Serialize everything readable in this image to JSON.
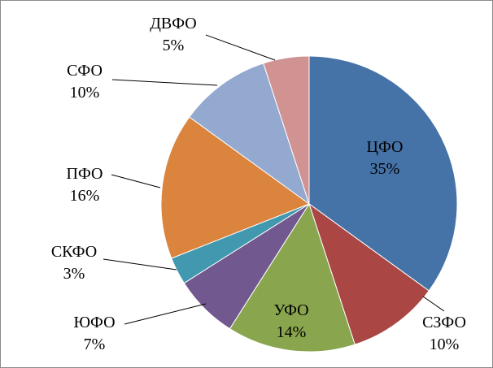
{
  "chart_data": {
    "type": "pie",
    "title": "",
    "slices": [
      {
        "name": "ЦФО",
        "percent_label": "35%",
        "value": 35,
        "color": "#4572a7",
        "label_position": "inside"
      },
      {
        "name": "СЗФО",
        "percent_label": "10%",
        "value": 10,
        "color": "#aa4643",
        "label_position": "outside"
      },
      {
        "name": "УФО",
        "percent_label": "14%",
        "value": 14,
        "color": "#89a54e",
        "label_position": "inside"
      },
      {
        "name": "ЮФО",
        "percent_label": "7%",
        "value": 7,
        "color": "#71588f",
        "label_position": "outside"
      },
      {
        "name": "СКФО",
        "percent_label": "3%",
        "value": 3,
        "color": "#4198af",
        "label_position": "outside"
      },
      {
        "name": "ПФО",
        "percent_label": "16%",
        "value": 16,
        "color": "#db843d",
        "label_position": "outside"
      },
      {
        "name": "СФО",
        "percent_label": "10%",
        "value": 10,
        "color": "#93a9cf",
        "label_position": "outside"
      },
      {
        "name": "ДВФО",
        "percent_label": "5%",
        "value": 5,
        "color": "#d19392",
        "label_position": "outside"
      }
    ],
    "start_angle": "top",
    "direction": "clockwise",
    "legend": "none",
    "labels": "category name and percentage"
  }
}
